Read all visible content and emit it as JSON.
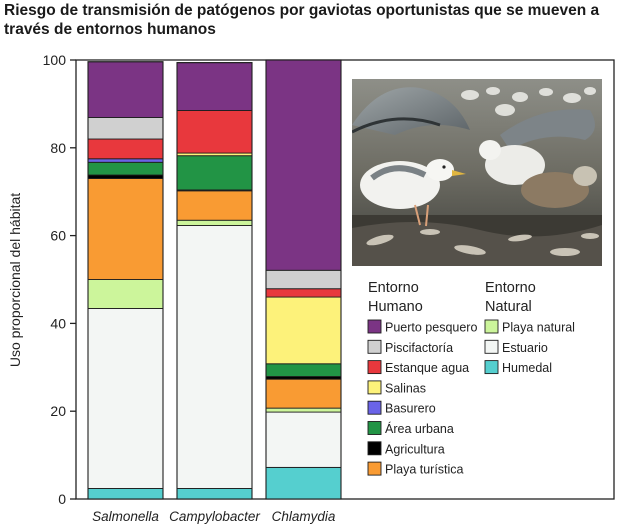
{
  "chart_data": {
    "type": "stacked-bar",
    "title": "Riesgo de transmisión de patógenos por gaviotas oportunistas que se mueven a través de entornos humanos",
    "ylabel": "Uso proporcional del hábitat",
    "xlabel": "",
    "ylim": [
      0,
      100
    ],
    "yticks": [
      0,
      20,
      40,
      60,
      80,
      100
    ],
    "grid": false,
    "categories": [
      "Salmonella",
      "Campylobacter",
      "Chlamydia"
    ],
    "legend_groups": [
      {
        "title_line1": "Entorno",
        "title_line2": "Humano",
        "series": [
          "Puerto pesquero",
          "Piscifactoría",
          "Estanque agua",
          "Salinas",
          "Basurero",
          "Área urbana",
          "Agricultura",
          "Playa turística"
        ]
      },
      {
        "title_line1": "Entorno",
        "title_line2": "Natural",
        "series": [
          "Playa natural",
          "Estuario",
          "Humedal"
        ]
      }
    ],
    "stack_order": [
      "Humedal",
      "Estuario",
      "Playa natural",
      "Playa turística",
      "Agricultura",
      "Área urbana",
      "Basurero",
      "Salinas",
      "Estanque agua",
      "Piscifactoría",
      "Puerto pesquero"
    ],
    "series": [
      {
        "name": "Puerto pesquero",
        "color": "#7b3484",
        "values": [
          12.7,
          10.9,
          47.9
        ]
      },
      {
        "name": "Piscifactoría",
        "color": "#d0d0d0",
        "values": [
          4.9,
          0,
          4.2
        ]
      },
      {
        "name": "Estanque agua",
        "color": "#e8383d",
        "values": [
          4.5,
          9.7,
          1.9
        ]
      },
      {
        "name": "Salinas",
        "color": "#fdf27a",
        "values": [
          0,
          0.6,
          15.2
        ]
      },
      {
        "name": "Basurero",
        "color": "#6a63e8",
        "values": [
          0.8,
          0,
          0
        ]
      },
      {
        "name": "Área urbana",
        "color": "#229445",
        "values": [
          2.9,
          7.8,
          2.9
        ]
      },
      {
        "name": "Agricultura",
        "color": "#000000",
        "values": [
          0.8,
          0.2,
          0.6
        ]
      },
      {
        "name": "Playa turística",
        "color": "#f99b33",
        "values": [
          23.0,
          6.7,
          6.6
        ]
      },
      {
        "name": "Playa natural",
        "color": "#ccf59b",
        "values": [
          6.6,
          1.2,
          0.9
        ]
      },
      {
        "name": "Estuario",
        "color": "#f3f6f4",
        "values": [
          41.0,
          59.9,
          12.6
        ]
      },
      {
        "name": "Humedal",
        "color": "#55cfcf",
        "values": [
          2.4,
          2.4,
          7.2
        ]
      }
    ],
    "photo": {
      "name": "gulls-photo",
      "caption": ""
    }
  }
}
